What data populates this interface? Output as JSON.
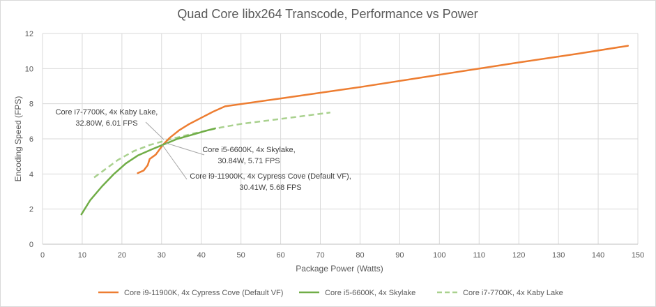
{
  "chart_data": {
    "type": "line",
    "title": "Quad Core libx264 Transcode, Performance vs Power",
    "xlabel": "Package Power (Watts)",
    "ylabel": "Encoding Speed (FPS)",
    "xlim": [
      0,
      150
    ],
    "ylim": [
      0,
      12
    ],
    "x_ticks": [
      "0",
      "10",
      "20",
      "30",
      "40",
      "50",
      "60",
      "70",
      "80",
      "90",
      "100",
      "110",
      "120",
      "130",
      "140",
      "150"
    ],
    "y_ticks": [
      "0",
      "2",
      "4",
      "6",
      "8",
      "10",
      "12"
    ],
    "grid": "vertical and horizontal",
    "legend_position": "bottom",
    "series": [
      {
        "name": "Core i9-11900K, 4x Cypress Cove (Default VF)",
        "color": "#ED7D31",
        "dash": "solid",
        "points": [
          [
            24.0,
            4.05
          ],
          [
            25.5,
            4.2
          ],
          [
            26.5,
            4.5
          ],
          [
            27.0,
            4.85
          ],
          [
            28.5,
            5.1
          ],
          [
            30.41,
            5.68
          ],
          [
            32.0,
            6.05
          ],
          [
            34.5,
            6.5
          ],
          [
            37.0,
            6.85
          ],
          [
            40.0,
            7.2
          ],
          [
            43.0,
            7.55
          ],
          [
            46.0,
            7.85
          ],
          [
            60.0,
            8.3
          ],
          [
            80.0,
            8.95
          ],
          [
            100.0,
            9.65
          ],
          [
            120.0,
            10.35
          ],
          [
            135.0,
            10.85
          ],
          [
            147.5,
            11.3
          ]
        ]
      },
      {
        "name": "Core i5-6600K, 4x Skylake",
        "color": "#70AD47",
        "dash": "solid",
        "points": [
          [
            9.8,
            1.7
          ],
          [
            12.0,
            2.5
          ],
          [
            15.0,
            3.3
          ],
          [
            18.0,
            4.0
          ],
          [
            21.0,
            4.6
          ],
          [
            24.0,
            5.05
          ],
          [
            27.5,
            5.4
          ],
          [
            30.84,
            5.71
          ],
          [
            34.0,
            6.0
          ],
          [
            38.0,
            6.25
          ],
          [
            41.0,
            6.45
          ],
          [
            43.5,
            6.6
          ]
        ]
      },
      {
        "name": "Core i7-7700K, 4x Kaby Lake",
        "color": "#A9D18E",
        "dash": "dashed",
        "points": [
          [
            13.0,
            3.8
          ],
          [
            16.0,
            4.3
          ],
          [
            19.0,
            4.8
          ],
          [
            23.0,
            5.3
          ],
          [
            27.0,
            5.65
          ],
          [
            32.8,
            6.01
          ],
          [
            38.0,
            6.3
          ],
          [
            45.0,
            6.65
          ],
          [
            50.0,
            6.85
          ],
          [
            57.0,
            7.05
          ],
          [
            64.0,
            7.25
          ],
          [
            72.5,
            7.5
          ]
        ]
      }
    ],
    "annotations": [
      {
        "lines": [
          "Core i7-7700K, 4x Kaby Lake,",
          "32.80W, 6.01 FPS"
        ],
        "point": [
          32.8,
          6.01
        ]
      },
      {
        "lines": [
          "Core i5-6600K, 4x Skylake,",
          "30.84W, 5.71 FPS"
        ],
        "point": [
          30.84,
          5.71
        ]
      },
      {
        "lines": [
          "Core i9-11900K, 4x Cypress Cove (Default VF),",
          "30.41W, 5.68 FPS"
        ],
        "point": [
          30.41,
          5.68
        ]
      }
    ]
  }
}
